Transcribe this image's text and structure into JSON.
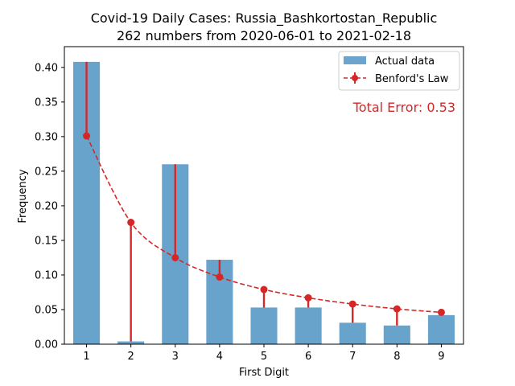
{
  "chart_data": {
    "type": "bar",
    "title": "Covid-19 Daily Cases: Russia_Bashkortostan_Republic",
    "subtitle": "262 numbers from 2020-06-01 to 2021-02-18",
    "xlabel": "First Digit",
    "ylabel": "Frequency",
    "categories": [
      "1",
      "2",
      "3",
      "4",
      "5",
      "6",
      "7",
      "8",
      "9"
    ],
    "ylim": [
      0,
      0.43
    ],
    "yticks": [
      "0.00",
      "0.05",
      "0.10",
      "0.15",
      "0.20",
      "0.25",
      "0.30",
      "0.35",
      "0.40"
    ],
    "legend_position": "top-right",
    "grid": false,
    "series": [
      {
        "name": "Actual data",
        "type": "bar",
        "color": "#5b9bc8",
        "values": [
          0.408,
          0.004,
          0.26,
          0.122,
          0.053,
          0.053,
          0.031,
          0.027,
          0.042
        ]
      },
      {
        "name": "Benford's Law",
        "type": "line",
        "color": "#d62728",
        "values": [
          0.301,
          0.176,
          0.125,
          0.097,
          0.079,
          0.067,
          0.058,
          0.051,
          0.046
        ]
      }
    ],
    "annotation": {
      "text": "Total Error: 0.53",
      "color": "#d62728"
    }
  }
}
